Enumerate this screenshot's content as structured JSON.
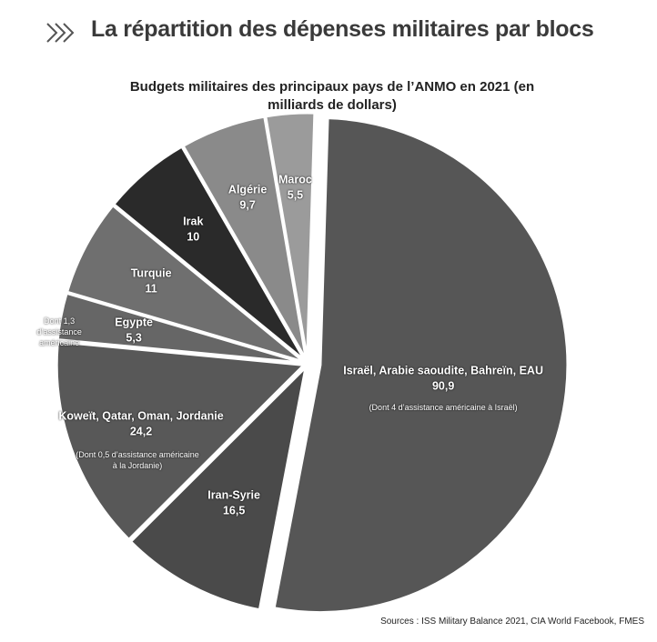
{
  "header": {
    "title": "La répartition des dépenses militaires par blocs"
  },
  "chart_data": {
    "type": "pie",
    "title": "Budgets militaires des principaux pays de l’ANMO en 2021 (en milliards de dollars)",
    "categories": [
      "Israël, Arabie saoudite, Bahreïn, EAU",
      "Iran-Syrie",
      "Koweït, Qatar, Oman, Jordanie",
      "Egypte",
      "Turquie",
      "Irak",
      "Algérie",
      "Maroc"
    ],
    "values": [
      90.9,
      16.5,
      24.2,
      5.3,
      11,
      10,
      9.7,
      5.5
    ],
    "value_labels": [
      "90,9",
      "16,5",
      "24,2",
      "5,3",
      "11",
      "10",
      "9,7",
      "5,5"
    ],
    "colors": [
      "#565656",
      "#4a4a4a",
      "#585858",
      "#666666",
      "#6f6f6f",
      "#2a2a2a",
      "#8a8a8a",
      "#9b9b9b"
    ],
    "annotations": [
      "(Dont 4 d’assistance américaine à Israël)",
      "(Dont 0,5 d’assistance américaine à la Jordanie)",
      "Dont 1,3 d’assistance américaine"
    ],
    "source": "Sources : ISS Military Balance 2021, CIA World Facebook, FMES"
  }
}
